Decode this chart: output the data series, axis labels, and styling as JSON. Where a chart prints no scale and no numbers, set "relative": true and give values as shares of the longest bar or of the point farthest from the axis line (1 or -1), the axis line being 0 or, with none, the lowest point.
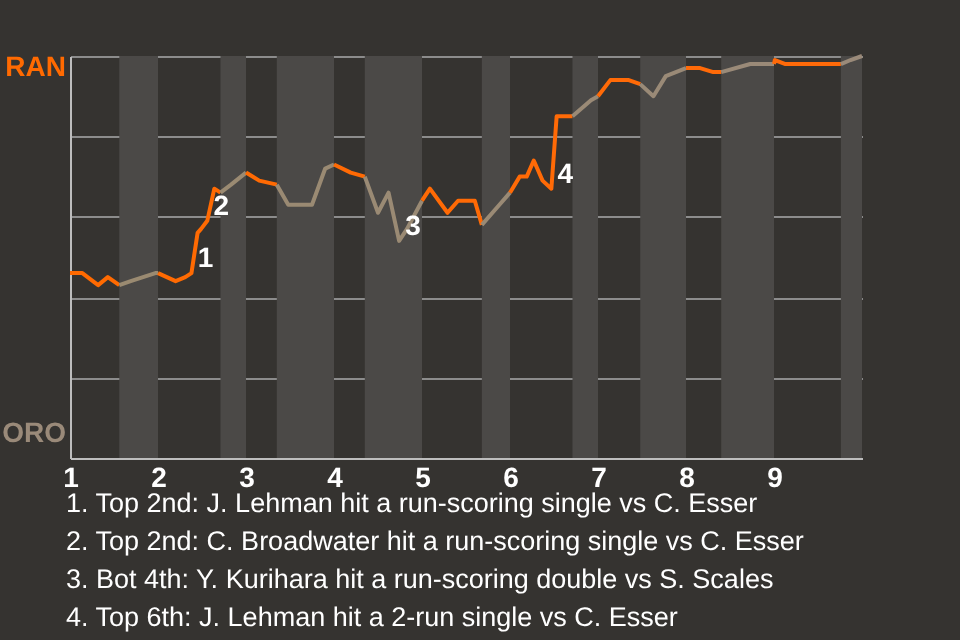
{
  "chart_data": {
    "type": "line",
    "relative": true,
    "series": [
      {
        "color": "#ff6a01",
        "x": [
          1.0,
          1.14,
          1.32,
          1.43,
          1.56
        ],
        "values": [
          0.46,
          0.46,
          0.43,
          0.45,
          0.43
        ]
      },
      {
        "color": "#9a8a71",
        "x": [
          1.56,
          1.69,
          1.97,
          2.0
        ],
        "values": [
          0.43,
          0.44,
          0.46,
          0.46
        ]
      },
      {
        "color": "#ff6a02",
        "x": [
          2.0,
          2.2,
          2.31,
          2.38,
          2.45,
          2.49,
          2.56,
          2.64,
          2.71
        ],
        "values": [
          0.46,
          0.44,
          0.45,
          0.46,
          0.56,
          0.57,
          0.59,
          0.67,
          0.66
        ]
      },
      {
        "color": "#9a8a72",
        "x": [
          2.71,
          2.83,
          3.0
        ],
        "values": [
          0.66,
          0.68,
          0.71
        ]
      },
      {
        "color": "#ff6a03",
        "x": [
          3.0,
          3.15,
          3.35
        ],
        "values": [
          0.71,
          0.69,
          0.68
        ]
      },
      {
        "color": "#9a8a73",
        "x": [
          3.35,
          3.48,
          3.75,
          3.9,
          4.0
        ],
        "values": [
          0.68,
          0.63,
          0.63,
          0.72,
          0.73
        ]
      },
      {
        "color": "#ff6a04",
        "x": [
          4.0,
          4.19,
          4.35
        ],
        "values": [
          0.73,
          0.71,
          0.7
        ]
      },
      {
        "color": "#9a8a74",
        "x": [
          4.35,
          4.5,
          4.62,
          4.74,
          4.83,
          5.0
        ],
        "values": [
          0.7,
          0.61,
          0.66,
          0.54,
          0.57,
          0.64
        ]
      },
      {
        "color": "#ff6a05",
        "x": [
          5.0,
          5.09,
          5.29,
          5.41,
          5.6,
          5.68
        ],
        "values": [
          0.64,
          0.67,
          0.61,
          0.64,
          0.64,
          0.58
        ]
      },
      {
        "color": "#9a8a75",
        "x": [
          5.68,
          5.88,
          6.0
        ],
        "values": [
          0.58,
          0.63,
          0.66
        ]
      },
      {
        "color": "#ff6a06",
        "x": [
          6.0,
          6.11,
          6.19,
          6.27,
          6.37,
          6.47,
          6.53,
          6.71
        ],
        "values": [
          0.66,
          0.7,
          0.7,
          0.74,
          0.69,
          0.67,
          0.85,
          0.85
        ]
      },
      {
        "color": "#9a8a76",
        "x": [
          6.71,
          6.92,
          7.0
        ],
        "values": [
          0.85,
          0.89,
          0.9
        ]
      },
      {
        "color": "#ff6a07",
        "x": [
          7.0,
          7.14,
          7.23,
          7.35,
          7.48
        ],
        "values": [
          0.9,
          0.94,
          0.94,
          0.94,
          0.93
        ]
      },
      {
        "color": "#9a8a77",
        "x": [
          7.48,
          7.63,
          7.77,
          8.0
        ],
        "values": [
          0.93,
          0.9,
          0.95,
          0.97
        ]
      },
      {
        "color": "#ff6a08",
        "x": [
          8.0,
          8.16,
          8.31,
          8.4
        ],
        "values": [
          0.97,
          0.97,
          0.96,
          0.96
        ]
      },
      {
        "color": "#9a8a78",
        "x": [
          8.4,
          8.73,
          9.0
        ],
        "values": [
          0.96,
          0.98,
          0.98
        ]
      },
      {
        "color": "#ff6a09",
        "x": [
          9.0,
          9.01,
          9.13,
          9.76
        ],
        "values": [
          0.98,
          0.99,
          0.98,
          0.98
        ]
      },
      {
        "color": "#9a8a79",
        "x": [
          9.76,
          9.87,
          10.0
        ],
        "values": [
          0.98,
          0.99,
          1.0
        ]
      }
    ],
    "xlim": [
      1,
      10
    ],
    "xticks": [
      1,
      2,
      3,
      4,
      5,
      6,
      7,
      8,
      9
    ],
    "grid": "y",
    "bands": [
      {
        "axis": "x",
        "from": 1.56,
        "to": 2.0,
        "color": "#4b4947"
      },
      {
        "axis": "x",
        "from": 2.71,
        "to": 3.0,
        "color": "#4b4947"
      },
      {
        "axis": "x",
        "from": 3.35,
        "to": 4.0,
        "color": "#4b4947"
      },
      {
        "axis": "x",
        "from": 4.35,
        "to": 5.0,
        "color": "#4b4947"
      },
      {
        "axis": "x",
        "from": 5.68,
        "to": 6.0,
        "color": "#4b4947"
      },
      {
        "axis": "x",
        "from": 6.71,
        "to": 7.0,
        "color": "#4b4947"
      },
      {
        "axis": "x",
        "from": 7.48,
        "to": 8.0,
        "color": "#4b4947"
      },
      {
        "axis": "x",
        "from": 8.4,
        "to": 9.0,
        "color": "#4b4947"
      },
      {
        "axis": "x",
        "from": 9.76,
        "to": 10.0,
        "color": "#4b4947"
      }
    ],
    "annotations": [
      "RAN",
      "ORO",
      {
        "text": "1",
        "x": 2.38,
        "y": 0.46
      },
      {
        "text": "2",
        "x": 2.56,
        "y": 0.59
      },
      {
        "text": "3",
        "x": 4.74,
        "y": 0.54
      },
      {
        "text": "4",
        "x": 6.47,
        "y": 0.67
      },
      "1. Top 2nd: J. Lehman hit a run-scoring single vs C. Esser",
      "2. Top 2nd: C. Broadwater hit a run-scoring single vs C. Esser",
      "3. Bot 4th: Y. Kurihara hit a run-scoring double vs S. Scales",
      "4. Top 6th: J. Lehman hit a 2-run single vs C. Esser"
    ]
  }
}
